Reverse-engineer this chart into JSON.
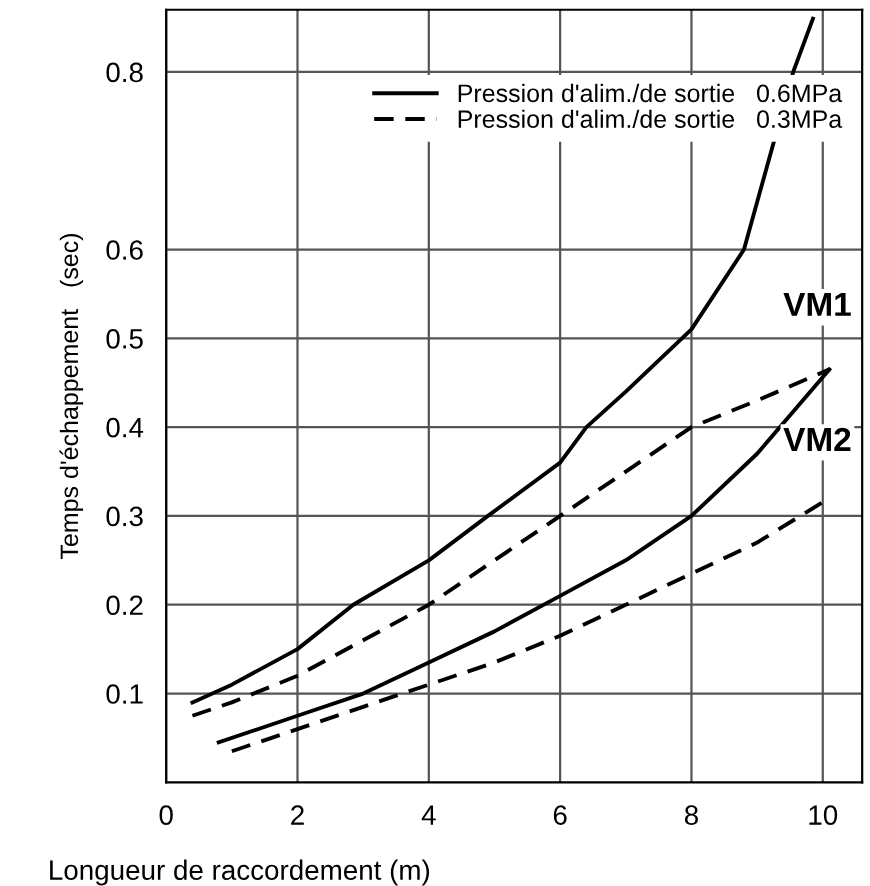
{
  "chart_data": {
    "type": "line",
    "xlabel": "Longueur de raccordement (m)",
    "ylabel": "Temps d'échappement   (sec)",
    "xlim": [
      0,
      10.6
    ],
    "ylim": [
      0,
      0.87
    ],
    "xticks": [
      0,
      2,
      4,
      6,
      8,
      10
    ],
    "yticks": [
      0.1,
      0.2,
      0.3,
      0.4,
      0.5,
      0.6,
      0.8
    ],
    "grid": true,
    "legend": "top right",
    "marker": "none",
    "series": [
      {
        "name": "Pression d'alim./de sortie   0.6MPa",
        "color": "#000000",
        "line_style": "solid",
        "x": [
          0.4,
          1,
          2,
          2.85,
          4,
          4.9,
          6,
          6.4,
          7,
          8,
          8.8,
          9.55,
          9.85
        ],
        "values": [
          0.09,
          0.11,
          0.15,
          0.2,
          0.25,
          0.3,
          0.36,
          0.4,
          0.44,
          0.51,
          0.6,
          0.8,
          0.86
        ]
      },
      {
        "name": "Pression d'alim./de sortie   0.3MPa",
        "color": "#000000",
        "line_style": "dashed",
        "x": [
          0.4,
          1,
          2,
          3,
          4,
          5,
          6,
          7,
          8,
          9,
          10.1
        ],
        "values": [
          0.075,
          0.09,
          0.12,
          0.16,
          0.2,
          0.25,
          0.3,
          0.35,
          0.4,
          0.43,
          0.465
        ]
      },
      {
        "color": "#000000",
        "line_style": "solid",
        "x": [
          0.8,
          2,
          3,
          4,
          5,
          6,
          7,
          8,
          9,
          10.1
        ],
        "values": [
          0.045,
          0.075,
          0.1,
          0.135,
          0.17,
          0.21,
          0.25,
          0.3,
          0.37,
          0.465
        ]
      },
      {
        "color": "#000000",
        "line_style": "dashed",
        "x": [
          1,
          2,
          3,
          4,
          5,
          6,
          7,
          8,
          9,
          10.1
        ],
        "values": [
          0.035,
          0.06,
          0.085,
          0.11,
          0.135,
          0.165,
          0.2,
          0.235,
          0.27,
          0.32
        ]
      }
    ],
    "annotations": [
      "VM1",
      "VM2"
    ]
  }
}
